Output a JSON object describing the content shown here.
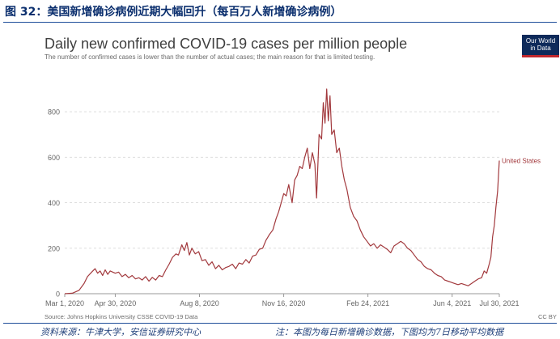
{
  "figure": {
    "title": "图 32：美国新增确诊病例近期大幅回升（每百万人新增确诊病例）"
  },
  "logo": {
    "line1": "Our World",
    "line2": "in Data"
  },
  "footer": {
    "source_note": "Source: Johns Hopkins University CSSE COVID-19 Data",
    "license": "CC BY",
    "data_source": "资料来源：牛津大学，安信证券研究中心",
    "note": "注：本图为每日新增确诊数据，下图均为7日移动平均数据"
  },
  "colors": {
    "series": "#a2393d",
    "grid": "#dddddd",
    "axis_text": "#666666",
    "figure_title": "#0b2f6e",
    "rule": "#1f4e9a",
    "footnote": "#1f3f7a"
  },
  "chart_data": {
    "type": "line",
    "title": "Daily new confirmed COVID-19 cases per million people",
    "subtitle": "The number of confirmed cases is lower than the number of actual cases; the main reason for that is limited testing.",
    "xlabel": "",
    "ylabel": "",
    "ylim": [
      0,
      900
    ],
    "yticks": [
      0,
      200,
      400,
      600,
      800
    ],
    "xlim": [
      "2020-03-01",
      "2021-07-30"
    ],
    "xticks": [
      "2020-03-01",
      "2020-04-30",
      "2020-08-08",
      "2020-11-16",
      "2021-02-24",
      "2021-06-04",
      "2021-07-30"
    ],
    "xtick_labels": [
      "Mar 1, 2020",
      "Apr 30, 2020",
      "Aug 8, 2020",
      "Nov 16, 2020",
      "Feb 24, 2021",
      "Jun 4, 2021",
      "Jul 30, 2021"
    ],
    "grid": "horizontal dashed",
    "legend": "end-of-line label",
    "series": [
      {
        "name": "United States",
        "x": [
          "2020-03-01",
          "2020-03-10",
          "2020-03-18",
          "2020-03-24",
          "2020-03-28",
          "2020-04-02",
          "2020-04-06",
          "2020-04-09",
          "2020-04-12",
          "2020-04-15",
          "2020-04-18",
          "2020-04-21",
          "2020-04-24",
          "2020-04-27",
          "2020-04-30",
          "2020-05-04",
          "2020-05-08",
          "2020-05-12",
          "2020-05-16",
          "2020-05-20",
          "2020-05-24",
          "2020-05-28",
          "2020-06-01",
          "2020-06-05",
          "2020-06-09",
          "2020-06-13",
          "2020-06-17",
          "2020-06-21",
          "2020-06-25",
          "2020-06-29",
          "2020-07-03",
          "2020-07-07",
          "2020-07-11",
          "2020-07-14",
          "2020-07-18",
          "2020-07-21",
          "2020-07-24",
          "2020-07-27",
          "2020-07-30",
          "2020-08-03",
          "2020-08-07",
          "2020-08-11",
          "2020-08-15",
          "2020-08-19",
          "2020-08-23",
          "2020-08-27",
          "2020-08-31",
          "2020-09-04",
          "2020-09-08",
          "2020-09-12",
          "2020-09-16",
          "2020-09-20",
          "2020-09-24",
          "2020-09-28",
          "2020-10-02",
          "2020-10-06",
          "2020-10-10",
          "2020-10-14",
          "2020-10-18",
          "2020-10-22",
          "2020-10-26",
          "2020-10-30",
          "2020-11-03",
          "2020-11-07",
          "2020-11-10",
          "2020-11-13",
          "2020-11-16",
          "2020-11-19",
          "2020-11-22",
          "2020-11-26",
          "2020-11-29",
          "2020-12-02",
          "2020-12-05",
          "2020-12-08",
          "2020-12-11",
          "2020-12-14",
          "2020-12-17",
          "2020-12-20",
          "2020-12-23",
          "2020-12-25",
          "2020-12-28",
          "2020-12-31",
          "2021-01-02",
          "2021-01-04",
          "2021-01-06",
          "2021-01-08",
          "2021-01-10",
          "2021-01-12",
          "2021-01-15",
          "2021-01-18",
          "2021-01-21",
          "2021-01-24",
          "2021-01-27",
          "2021-01-30",
          "2021-02-03",
          "2021-02-07",
          "2021-02-11",
          "2021-02-15",
          "2021-02-19",
          "2021-02-23",
          "2021-02-27",
          "2021-03-03",
          "2021-03-07",
          "2021-03-11",
          "2021-03-15",
          "2021-03-19",
          "2021-03-23",
          "2021-03-27",
          "2021-03-31",
          "2021-04-04",
          "2021-04-08",
          "2021-04-12",
          "2021-04-16",
          "2021-04-20",
          "2021-04-24",
          "2021-04-28",
          "2021-05-02",
          "2021-05-06",
          "2021-05-10",
          "2021-05-14",
          "2021-05-18",
          "2021-05-22",
          "2021-05-26",
          "2021-05-30",
          "2021-06-03",
          "2021-06-07",
          "2021-06-11",
          "2021-06-15",
          "2021-06-19",
          "2021-06-23",
          "2021-06-27",
          "2021-07-01",
          "2021-07-05",
          "2021-07-09",
          "2021-07-12",
          "2021-07-15",
          "2021-07-18",
          "2021-07-20",
          "2021-07-22",
          "2021-07-24",
          "2021-07-26",
          "2021-07-28",
          "2021-07-30"
        ],
        "values": [
          0,
          2,
          15,
          45,
          75,
          95,
          110,
          90,
          100,
          80,
          105,
          85,
          100,
          95,
          90,
          95,
          75,
          85,
          70,
          80,
          65,
          70,
          60,
          75,
          55,
          72,
          60,
          80,
          75,
          105,
          130,
          160,
          175,
          170,
          215,
          190,
          225,
          170,
          200,
          175,
          185,
          145,
          150,
          125,
          140,
          110,
          125,
          105,
          115,
          120,
          130,
          110,
          135,
          130,
          150,
          135,
          165,
          170,
          195,
          200,
          235,
          260,
          280,
          330,
          360,
          400,
          440,
          430,
          480,
          400,
          500,
          520,
          560,
          550,
          600,
          640,
          550,
          620,
          570,
          420,
          700,
          680,
          840,
          750,
          900,
          760,
          870,
          700,
          720,
          620,
          640,
          560,
          500,
          460,
          380,
          340,
          320,
          280,
          250,
          230,
          210,
          220,
          200,
          215,
          205,
          195,
          180,
          210,
          220,
          230,
          220,
          200,
          190,
          170,
          150,
          140,
          120,
          110,
          105,
          90,
          80,
          75,
          60,
          55,
          50,
          45,
          40,
          45,
          40,
          35,
          45,
          55,
          65,
          70,
          100,
          90,
          130,
          160,
          250,
          300,
          380,
          450,
          585
        ]
      }
    ]
  }
}
